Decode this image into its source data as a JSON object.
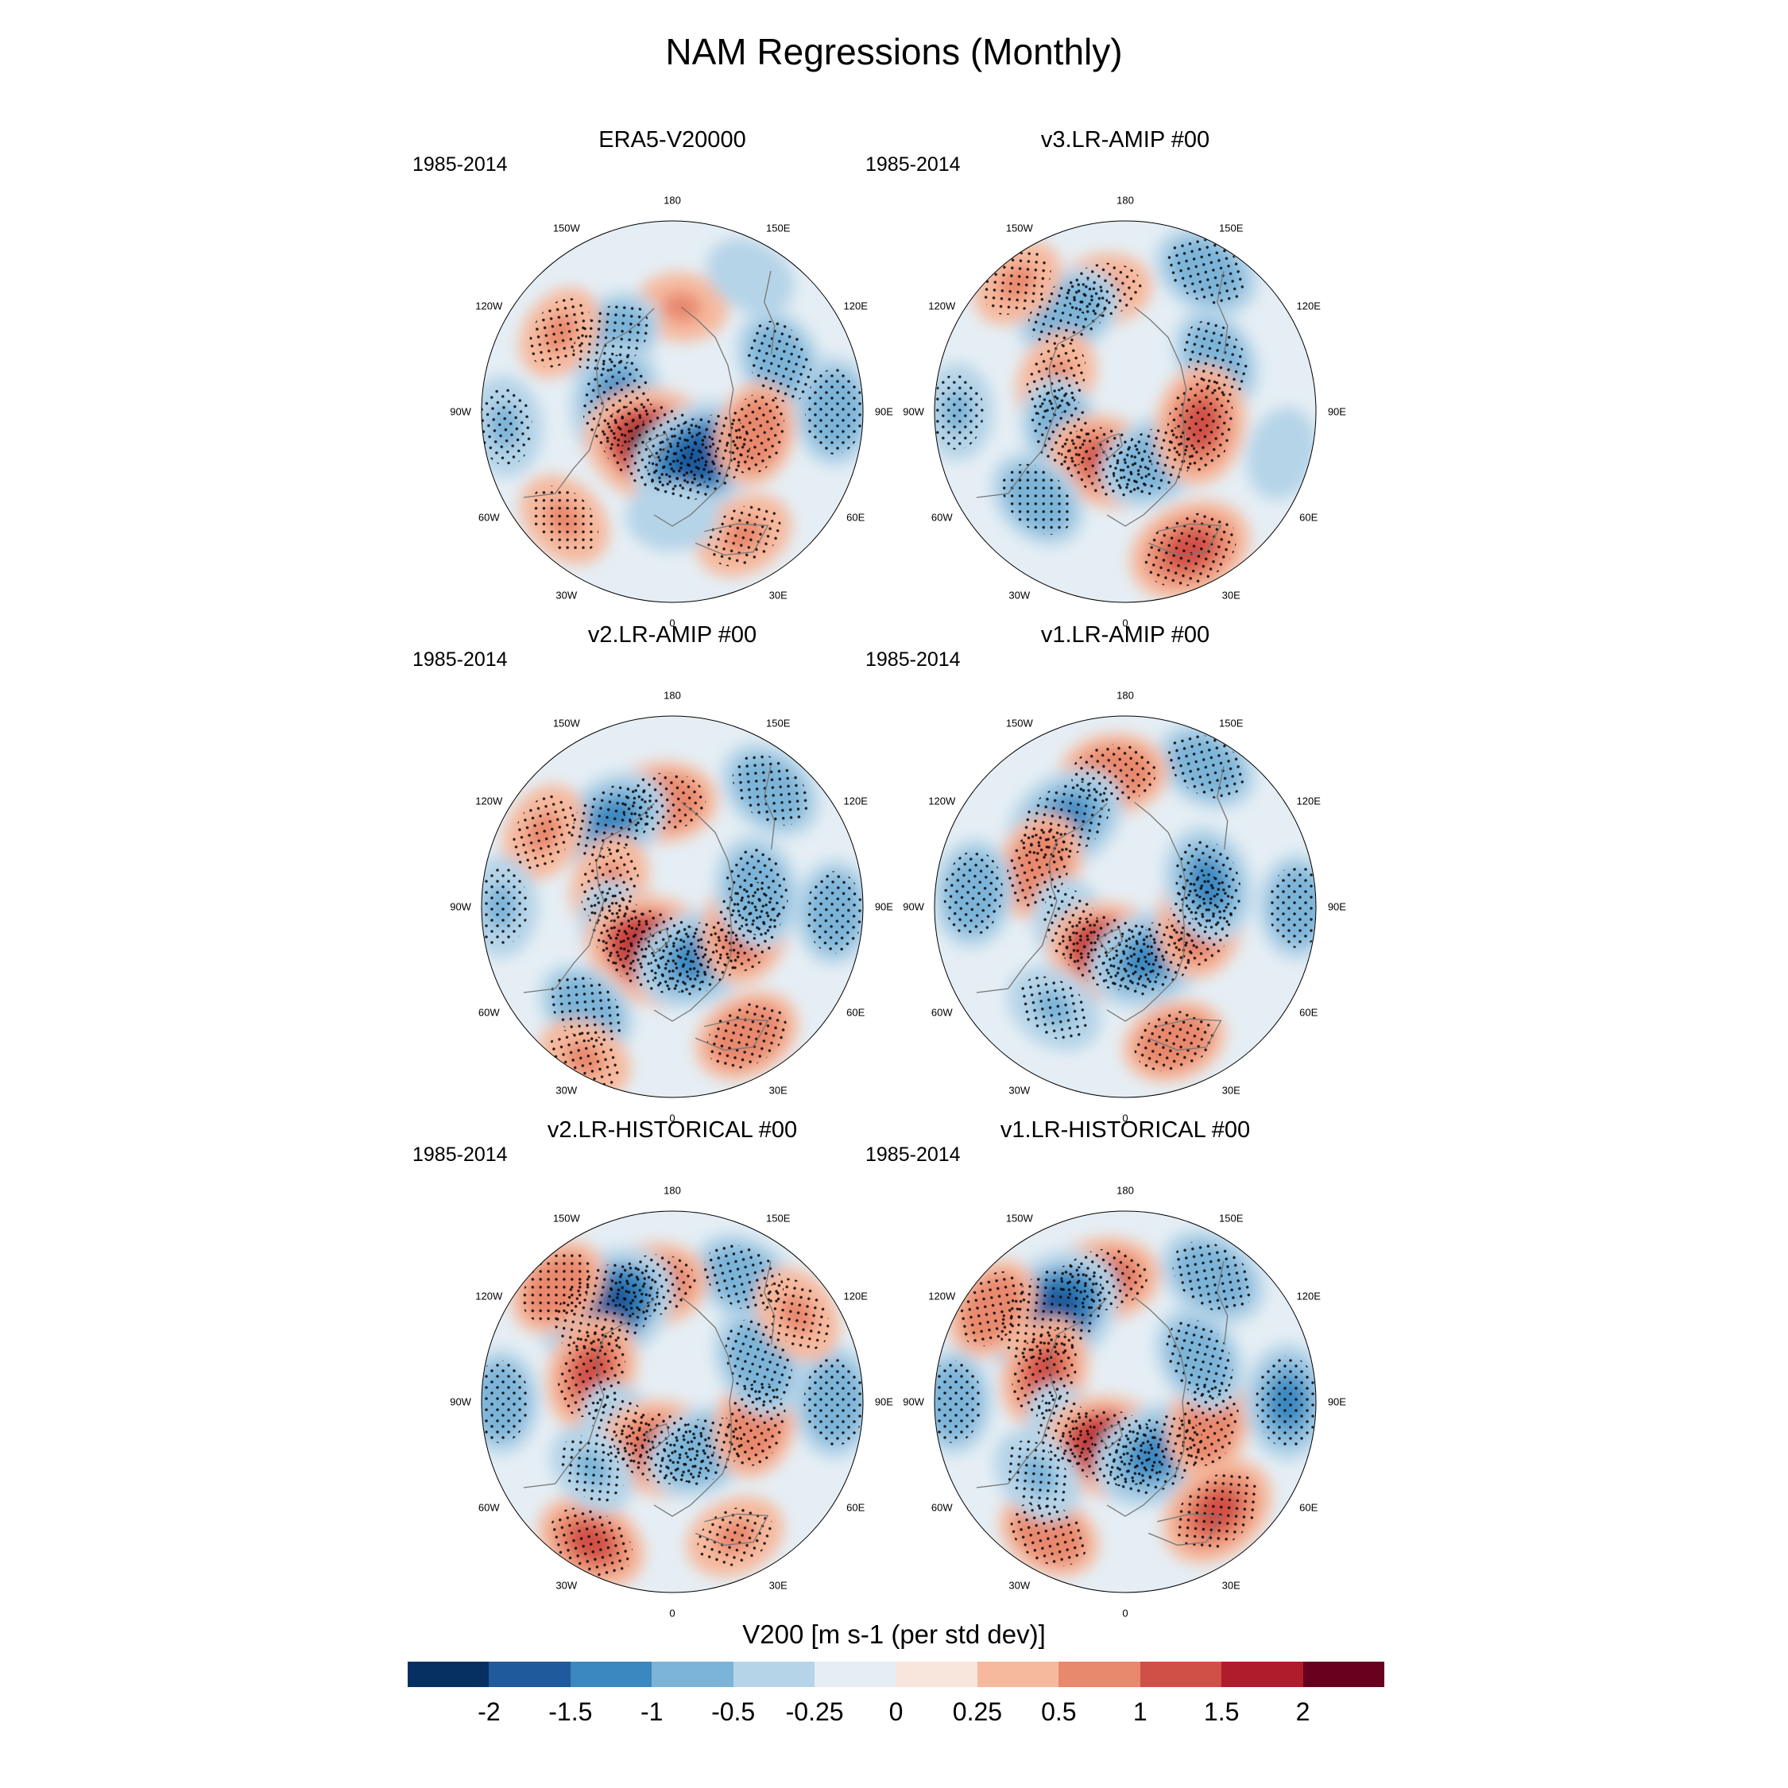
{
  "figure": {
    "title": "NAM Regressions (Monthly)"
  },
  "panels": [
    {
      "title": "ERA5-V20000",
      "period": "1985-2014"
    },
    {
      "title": "v3.LR-AMIP  #00",
      "period": "1985-2014"
    },
    {
      "title": "v2.LR-AMIP  #00",
      "period": "1985-2014"
    },
    {
      "title": "v1.LR-AMIP  #00",
      "period": "1985-2014"
    },
    {
      "title": "v2.LR-HISTORICAL  #00",
      "period": "1985-2014"
    },
    {
      "title": "v1.LR-HISTORICAL  #00",
      "period": "1985-2014"
    }
  ],
  "longitude_labels": [
    "180",
    "150E",
    "120E",
    "90E",
    "60E",
    "30E",
    "0",
    "30W",
    "60W",
    "90W",
    "120W",
    "150W"
  ],
  "colorbar": {
    "title": "V200 [m s-1 (per std dev)]",
    "ticks": [
      "-2",
      "-1.5",
      "-1",
      "-0.5",
      "-0.25",
      "0",
      "0.25",
      "0.5",
      "1",
      "1.5",
      "2"
    ],
    "tick_values": [
      -2,
      -1.5,
      -1,
      -0.5,
      -0.25,
      0,
      0.25,
      0.5,
      1,
      1.5,
      2
    ],
    "colors": [
      "#053061",
      "#1f5a9c",
      "#3b88c0",
      "#7bb4d8",
      "#b5d4e8",
      "#e5eef4",
      "#f8e5dc",
      "#f6b99e",
      "#e8886d",
      "#d04f47",
      "#b01c2c",
      "#67001f"
    ]
  },
  "chart_data": {
    "type": "map",
    "title": "NAM Regressions (Monthly)",
    "projection": "north polar stereographic",
    "variable": "V200",
    "units": "m s-1 (per std dev)",
    "levels": [
      -2,
      -1.5,
      -1,
      -0.5,
      -0.25,
      0,
      0.25,
      0.5,
      1,
      1.5,
      2
    ],
    "panels": [
      {
        "name": "ERA5-V20000",
        "period": "1985-2014",
        "anomalies": [
          {
            "lon": 115,
            "dist": 0.62,
            "value": -0.9
          },
          {
            "lon": 175,
            "dist": 0.55,
            "value": 0.5
          },
          {
            "lon": 150,
            "dist": 0.82,
            "value": -0.5
          },
          {
            "lon": -140,
            "dist": 0.5,
            "value": -0.9
          },
          {
            "lon": -125,
            "dist": 0.72,
            "value": 0.6
          },
          {
            "lon": -100,
            "dist": 0.3,
            "value": -1.2
          },
          {
            "lon": -85,
            "dist": 0.88,
            "value": -0.7
          },
          {
            "lon": -20,
            "dist": 0.2,
            "value": 2.0
          },
          {
            "lon": 30,
            "dist": 0.28,
            "value": -1.7
          },
          {
            "lon": 75,
            "dist": 0.45,
            "value": 0.8
          },
          {
            "lon": 90,
            "dist": 0.85,
            "value": -0.9
          },
          {
            "lon": -45,
            "dist": 0.8,
            "value": 0.7
          },
          {
            "lon": 30,
            "dist": 0.75,
            "value": 0.7
          },
          {
            "lon": 0,
            "dist": 0.55,
            "value": -0.5
          }
        ]
      },
      {
        "name": "v3.LR-AMIP  #00",
        "period": "1985-2014",
        "anomalies": [
          {
            "lon": 150,
            "dist": 0.85,
            "value": -0.9
          },
          {
            "lon": 120,
            "dist": 0.55,
            "value": -0.8
          },
          {
            "lon": -170,
            "dist": 0.65,
            "value": 0.6
          },
          {
            "lon": -150,
            "dist": 0.6,
            "value": -0.9
          },
          {
            "lon": -140,
            "dist": 0.88,
            "value": 0.6
          },
          {
            "lon": -115,
            "dist": 0.4,
            "value": 0.7
          },
          {
            "lon": -75,
            "dist": 0.35,
            "value": -0.8
          },
          {
            "lon": -90,
            "dist": 0.88,
            "value": -0.6
          },
          {
            "lon": -20,
            "dist": 0.28,
            "value": 1.2
          },
          {
            "lon": 30,
            "dist": 0.3,
            "value": -1.0
          },
          {
            "lon": 80,
            "dist": 0.4,
            "value": 1.2
          },
          {
            "lon": 75,
            "dist": 0.85,
            "value": -0.5
          },
          {
            "lon": 25,
            "dist": 0.8,
            "value": 1.3
          },
          {
            "lon": -45,
            "dist": 0.65,
            "value": -0.8
          }
        ]
      },
      {
        "name": "v2.LR-AMIP  #00",
        "period": "1985-2014",
        "anomalies": [
          {
            "lon": 140,
            "dist": 0.8,
            "value": -0.9
          },
          {
            "lon": -175,
            "dist": 0.55,
            "value": 0.9
          },
          {
            "lon": -145,
            "dist": 0.55,
            "value": -1.1
          },
          {
            "lon": -120,
            "dist": 0.78,
            "value": 0.7
          },
          {
            "lon": -110,
            "dist": 0.35,
            "value": 0.7
          },
          {
            "lon": -90,
            "dist": 0.9,
            "value": -0.7
          },
          {
            "lon": -65,
            "dist": 0.3,
            "value": -0.8
          },
          {
            "lon": -20,
            "dist": 0.25,
            "value": 1.8
          },
          {
            "lon": 25,
            "dist": 0.3,
            "value": -1.3
          },
          {
            "lon": 75,
            "dist": 0.4,
            "value": 1.1
          },
          {
            "lon": 100,
            "dist": 0.45,
            "value": -1.0
          },
          {
            "lon": 88,
            "dist": 0.85,
            "value": -0.8
          },
          {
            "lon": 30,
            "dist": 0.78,
            "value": 0.9
          },
          {
            "lon": -40,
            "dist": 0.7,
            "value": -0.8
          },
          {
            "lon": -30,
            "dist": 0.92,
            "value": 0.6
          }
        ]
      },
      {
        "name": "v1.LR-AMIP  #00",
        "period": "1985-2014",
        "anomalies": [
          {
            "lon": 150,
            "dist": 0.85,
            "value": -0.8
          },
          {
            "lon": -175,
            "dist": 0.7,
            "value": 0.9
          },
          {
            "lon": -145,
            "dist": 0.55,
            "value": -1.3
          },
          {
            "lon": -115,
            "dist": 0.5,
            "value": 0.9
          },
          {
            "lon": -95,
            "dist": 0.8,
            "value": -0.9
          },
          {
            "lon": -70,
            "dist": 0.3,
            "value": -0.7
          },
          {
            "lon": -15,
            "dist": 0.25,
            "value": 1.5
          },
          {
            "lon": 25,
            "dist": 0.3,
            "value": -1.3
          },
          {
            "lon": 80,
            "dist": 0.4,
            "value": 1.1
          },
          {
            "lon": 105,
            "dist": 0.45,
            "value": -1.1
          },
          {
            "lon": 90,
            "dist": 0.9,
            "value": -0.8
          },
          {
            "lon": 20,
            "dist": 0.75,
            "value": 0.8
          },
          {
            "lon": -35,
            "dist": 0.65,
            "value": -0.7
          }
        ]
      },
      {
        "name": "v2.LR-HISTORICAL  #00",
        "period": "1985-2014",
        "anomalies": [
          {
            "lon": 150,
            "dist": 0.75,
            "value": -0.9
          },
          {
            "lon": -170,
            "dist": 0.62,
            "value": 1.0
          },
          {
            "lon": -145,
            "dist": 0.6,
            "value": -1.8
          },
          {
            "lon": -135,
            "dist": 0.85,
            "value": 0.8
          },
          {
            "lon": -110,
            "dist": 0.45,
            "value": 1.1
          },
          {
            "lon": -90,
            "dist": 0.9,
            "value": -0.8
          },
          {
            "lon": -60,
            "dist": 0.3,
            "value": -0.7
          },
          {
            "lon": -10,
            "dist": 0.25,
            "value": 1.4
          },
          {
            "lon": 30,
            "dist": 0.3,
            "value": -1.0
          },
          {
            "lon": 75,
            "dist": 0.45,
            "value": 0.9
          },
          {
            "lon": 90,
            "dist": 0.85,
            "value": -1.0
          },
          {
            "lon": 115,
            "dist": 0.5,
            "value": -1.0
          },
          {
            "lon": 125,
            "dist": 0.8,
            "value": 0.7
          },
          {
            "lon": 25,
            "dist": 0.78,
            "value": 0.7
          },
          {
            "lon": -30,
            "dist": 0.85,
            "value": 1.0
          },
          {
            "lon": -50,
            "dist": 0.55,
            "value": -0.6
          }
        ]
      },
      {
        "name": "v1.LR-HISTORICAL  #00",
        "period": "1985-2014",
        "anomalies": [
          {
            "lon": 145,
            "dist": 0.8,
            "value": -1.0
          },
          {
            "lon": -170,
            "dist": 0.65,
            "value": 1.0
          },
          {
            "lon": -140,
            "dist": 0.6,
            "value": -1.9
          },
          {
            "lon": -125,
            "dist": 0.85,
            "value": 0.8
          },
          {
            "lon": -110,
            "dist": 0.45,
            "value": 1.0
          },
          {
            "lon": -90,
            "dist": 0.9,
            "value": -0.8
          },
          {
            "lon": -65,
            "dist": 0.35,
            "value": -0.6
          },
          {
            "lon": -15,
            "dist": 0.25,
            "value": 1.6
          },
          {
            "lon": 30,
            "dist": 0.32,
            "value": -1.4
          },
          {
            "lon": 75,
            "dist": 0.45,
            "value": 0.9
          },
          {
            "lon": 90,
            "dist": 0.85,
            "value": -1.1
          },
          {
            "lon": 120,
            "dist": 0.45,
            "value": -0.9
          },
          {
            "lon": 40,
            "dist": 0.75,
            "value": 1.2
          },
          {
            "lon": -30,
            "dist": 0.8,
            "value": 0.8
          },
          {
            "lon": -50,
            "dist": 0.6,
            "value": -0.7
          }
        ]
      }
    ]
  }
}
